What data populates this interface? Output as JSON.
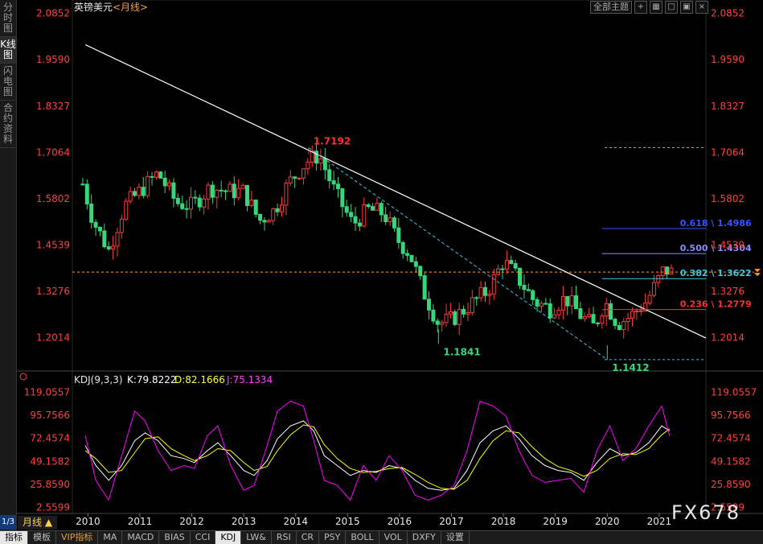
{
  "sidebar": {
    "items": [
      {
        "label": "分时图",
        "active": false
      },
      {
        "label": "K线图",
        "active": true
      },
      {
        "label": "闪电图",
        "active": false
      },
      {
        "label": "合约资料",
        "active": false
      }
    ],
    "page_indicator": "1/3"
  },
  "header": {
    "symbol": "英镑美元",
    "period_tag": "<月线>",
    "theme_button": "全部主题",
    "icons": [
      "add-icon",
      "grid-icon",
      "window-icon",
      "window-icon",
      "close-icon"
    ]
  },
  "indicator_header": {
    "name": "KDJ(9,3,3)",
    "k": "K:79.8222",
    "d": "D:82.1666",
    "j": "J:75.1334"
  },
  "period_label": "月线 ▲",
  "bottom_tabs": [
    {
      "label": "指标",
      "active": true,
      "vip": false
    },
    {
      "label": "模板",
      "active": false,
      "vip": false
    },
    {
      "label": "VIP指标",
      "active": false,
      "vip": true
    },
    {
      "label": "MA",
      "active": false,
      "vip": false
    },
    {
      "label": "MACD",
      "active": false,
      "vip": false
    },
    {
      "label": "BIAS",
      "active": false,
      "vip": false
    },
    {
      "label": "CCI",
      "active": false,
      "vip": false
    },
    {
      "label": "KDJ",
      "active": true,
      "vip": false
    },
    {
      "label": "LW&",
      "active": false,
      "vip": false
    },
    {
      "label": "RSI",
      "active": false,
      "vip": false
    },
    {
      "label": "CR",
      "active": false,
      "vip": false
    },
    {
      "label": "PSY",
      "active": false,
      "vip": false
    },
    {
      "label": "BOLL",
      "active": false,
      "vip": false
    },
    {
      "label": "VOL",
      "active": false,
      "vip": false
    },
    {
      "label": "DXFY",
      "active": false,
      "vip": false
    },
    {
      "label": "设置",
      "active": false,
      "vip": false
    }
  ],
  "watermark": "FX678",
  "colors": {
    "up": "#ff3b3b",
    "down": "#37d67a",
    "axis_text": "#ff4040",
    "trendline": "#ffffff",
    "dashed_channel": "#3ec6e0",
    "k_line": "#ffffff",
    "d_line": "#ffff00",
    "j_line": "#ff00ff"
  },
  "chart_data": [
    {
      "type": "candlestick",
      "title": "英镑美元",
      "ylim": [
        1.13,
        2.1
      ],
      "y_ticks": [
        "2.0852",
        "1.9590",
        "1.8327",
        "1.7064",
        "1.5802",
        "1.4539",
        "1.3276",
        "1.2014"
      ],
      "x_ticks": [
        "2010",
        "2011",
        "2012",
        "2013",
        "2014",
        "2015",
        "2016",
        "2017",
        "2018",
        "2019",
        "2020",
        "2021"
      ],
      "annotations": [
        {
          "label": "1.7192",
          "x": 2014.25,
          "y": 1.7192
        },
        {
          "label": "1.1841",
          "x": 2016.75,
          "y": 1.1841
        },
        {
          "label": "1.1412",
          "x": 2020.0,
          "y": 1.1412
        }
      ],
      "trendline": {
        "from": [
          2009.95,
          2.0
        ],
        "to": [
          2021.9,
          1.2
        ]
      },
      "fibonacci_levels": [
        {
          "label": "0.618 \\ 1.4986",
          "value": 1.4986,
          "color": "#3355ff"
        },
        {
          "label": "0.500 \\ 1.4304",
          "value": 1.4304,
          "color": "#8a8aff"
        },
        {
          "label": "0.382 \\ 1.3622",
          "value": 1.3622,
          "color": "#3ec6e0"
        },
        {
          "label": "0.236 \\ 1.2779",
          "value": 1.2779,
          "color": "#ff3030"
        }
      ],
      "dotted_levels": [
        1.7192,
        1.1412
      ],
      "current_price_line": 1.38,
      "ohlc_anchors": [
        {
          "x": 2009.9,
          "y": 1.62
        },
        {
          "x": 2010.1,
          "y": 1.52
        },
        {
          "x": 2010.4,
          "y": 1.44
        },
        {
          "x": 2010.7,
          "y": 1.56
        },
        {
          "x": 2011.0,
          "y": 1.6
        },
        {
          "x": 2011.35,
          "y": 1.65
        },
        {
          "x": 2011.7,
          "y": 1.57
        },
        {
          "x": 2012.0,
          "y": 1.56
        },
        {
          "x": 2012.35,
          "y": 1.61
        },
        {
          "x": 2012.7,
          "y": 1.6
        },
        {
          "x": 2013.0,
          "y": 1.6
        },
        {
          "x": 2013.3,
          "y": 1.52
        },
        {
          "x": 2013.6,
          "y": 1.55
        },
        {
          "x": 2013.85,
          "y": 1.62
        },
        {
          "x": 2014.2,
          "y": 1.68
        },
        {
          "x": 2014.45,
          "y": 1.7
        },
        {
          "x": 2014.75,
          "y": 1.6
        },
        {
          "x": 2015.1,
          "y": 1.51
        },
        {
          "x": 2015.4,
          "y": 1.55
        },
        {
          "x": 2015.7,
          "y": 1.54
        },
        {
          "x": 2015.95,
          "y": 1.47
        },
        {
          "x": 2016.2,
          "y": 1.43
        },
        {
          "x": 2016.45,
          "y": 1.33
        },
        {
          "x": 2016.75,
          "y": 1.24
        },
        {
          "x": 2017.0,
          "y": 1.25
        },
        {
          "x": 2017.35,
          "y": 1.29
        },
        {
          "x": 2017.7,
          "y": 1.33
        },
        {
          "x": 2018.0,
          "y": 1.41
        },
        {
          "x": 2018.3,
          "y": 1.36
        },
        {
          "x": 2018.6,
          "y": 1.3
        },
        {
          "x": 2018.9,
          "y": 1.28
        },
        {
          "x": 2019.2,
          "y": 1.31
        },
        {
          "x": 2019.5,
          "y": 1.26
        },
        {
          "x": 2019.75,
          "y": 1.23
        },
        {
          "x": 2019.95,
          "y": 1.3
        },
        {
          "x": 2020.2,
          "y": 1.24
        },
        {
          "x": 2020.45,
          "y": 1.26
        },
        {
          "x": 2020.75,
          "y": 1.3
        },
        {
          "x": 2020.95,
          "y": 1.35
        },
        {
          "x": 2021.1,
          "y": 1.39
        },
        {
          "x": 2021.2,
          "y": 1.38
        }
      ]
    },
    {
      "type": "line",
      "title": "KDJ(9,3,3)",
      "ylim": [
        -5,
        125
      ],
      "y_ticks": [
        "119.0557",
        "95.7566",
        "72.4574",
        "49.1582",
        "25.8590",
        "2.5599"
      ],
      "series": [
        {
          "name": "K",
          "x": [
            2009.95,
            2010.15,
            2010.4,
            2010.65,
            2010.9,
            2011.1,
            2011.35,
            2011.6,
            2011.85,
            2012.05,
            2012.3,
            2012.5,
            2012.75,
            2013.0,
            2013.2,
            2013.45,
            2013.65,
            2013.9,
            2014.15,
            2014.35,
            2014.55,
            2014.8,
            2015.05,
            2015.3,
            2015.55,
            2015.8,
            2016.05,
            2016.3,
            2016.55,
            2016.8,
            2017.05,
            2017.3,
            2017.55,
            2017.8,
            2018.05,
            2018.3,
            2018.55,
            2018.8,
            2019.05,
            2019.3,
            2019.55,
            2019.8,
            2020.05,
            2020.3,
            2020.55,
            2020.8,
            2021.05,
            2021.2
          ],
          "values": [
            65,
            45,
            30,
            45,
            70,
            78,
            70,
            55,
            52,
            48,
            60,
            68,
            55,
            40,
            35,
            50,
            72,
            85,
            90,
            80,
            55,
            45,
            35,
            40,
            38,
            45,
            42,
            30,
            22,
            20,
            22,
            40,
            68,
            80,
            85,
            72,
            55,
            45,
            40,
            38,
            30,
            48,
            62,
            55,
            58,
            68,
            85,
            80
          ]
        },
        {
          "name": "D",
          "x": [
            2009.95,
            2010.15,
            2010.4,
            2010.65,
            2010.9,
            2011.1,
            2011.35,
            2011.6,
            2011.85,
            2012.05,
            2012.3,
            2012.5,
            2012.75,
            2013.0,
            2013.2,
            2013.45,
            2013.65,
            2013.9,
            2014.15,
            2014.35,
            2014.55,
            2014.8,
            2015.05,
            2015.3,
            2015.55,
            2015.8,
            2016.05,
            2016.3,
            2016.55,
            2016.8,
            2017.05,
            2017.3,
            2017.55,
            2017.8,
            2018.05,
            2018.3,
            2018.55,
            2018.8,
            2019.05,
            2019.3,
            2019.55,
            2019.8,
            2020.05,
            2020.3,
            2020.55,
            2020.8,
            2021.05,
            2021.2
          ],
          "values": [
            60,
            52,
            38,
            40,
            58,
            72,
            74,
            62,
            55,
            50,
            55,
            62,
            60,
            48,
            40,
            44,
            60,
            76,
            86,
            84,
            66,
            52,
            42,
            38,
            39,
            42,
            43,
            36,
            28,
            22,
            21,
            30,
            52,
            70,
            80,
            78,
            64,
            52,
            44,
            40,
            34,
            40,
            52,
            57,
            56,
            62,
            76,
            82
          ]
        },
        {
          "name": "J",
          "x": [
            2009.95,
            2010.15,
            2010.4,
            2010.65,
            2010.9,
            2011.1,
            2011.35,
            2011.6,
            2011.85,
            2012.05,
            2012.3,
            2012.5,
            2012.75,
            2013.0,
            2013.2,
            2013.45,
            2013.65,
            2013.9,
            2014.15,
            2014.35,
            2014.55,
            2014.8,
            2015.05,
            2015.3,
            2015.55,
            2015.8,
            2016.05,
            2016.3,
            2016.55,
            2016.8,
            2017.05,
            2017.3,
            2017.55,
            2017.8,
            2018.05,
            2018.3,
            2018.55,
            2018.8,
            2019.05,
            2019.3,
            2019.55,
            2019.8,
            2020.05,
            2020.3,
            2020.55,
            2020.8,
            2021.05,
            2021.2
          ],
          "values": [
            75,
            30,
            10,
            55,
            100,
            90,
            60,
            40,
            45,
            42,
            75,
            85,
            45,
            20,
            25,
            65,
            100,
            110,
            105,
            70,
            30,
            25,
            10,
            45,
            30,
            55,
            40,
            15,
            10,
            15,
            25,
            60,
            110,
            105,
            95,
            60,
            35,
            28,
            30,
            32,
            18,
            60,
            85,
            50,
            62,
            85,
            105,
            75
          ]
        }
      ]
    }
  ]
}
